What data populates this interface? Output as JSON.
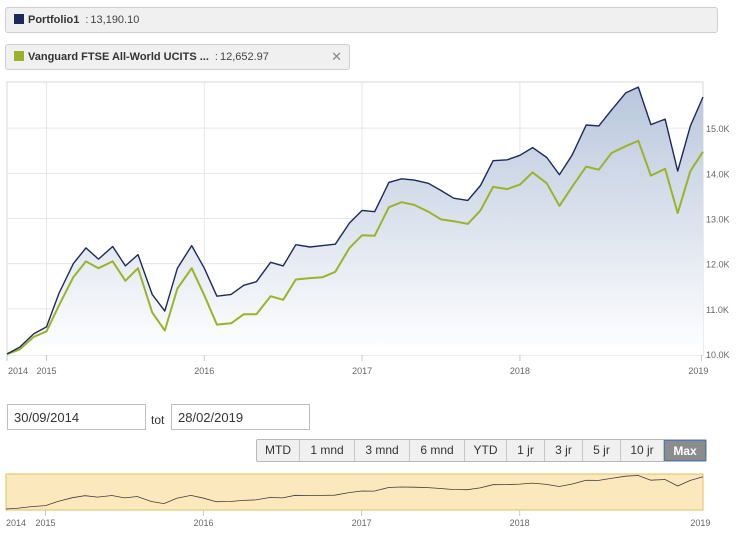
{
  "legend": {
    "series1_name": "Portfolio1",
    "series1_value": "13,190.10",
    "series1_color": "#1b2a5c",
    "series2_name": "Vanguard FTSE All-World UCITS ...",
    "series2_value": "12,652.97",
    "series2_color": "#9bb32a",
    "close_icon": "close-icon",
    "value_separator": ":"
  },
  "range": {
    "from": "30/09/2014",
    "connector": "tot",
    "to": "28/02/2019"
  },
  "range_buttons": [
    {
      "label": "MTD",
      "active": false
    },
    {
      "label": "1 mnd",
      "active": false
    },
    {
      "label": "3 mnd",
      "active": false
    },
    {
      "label": "6 mnd",
      "active": false
    },
    {
      "label": "YTD",
      "active": false
    },
    {
      "label": "1 jr",
      "active": false
    },
    {
      "label": "3 jr",
      "active": false
    },
    {
      "label": "5 jr",
      "active": false
    },
    {
      "label": "10 jr",
      "active": false
    },
    {
      "label": "Max",
      "active": true
    }
  ],
  "navigator": {
    "x_ticks": [
      {
        "label": "2014",
        "x": 2014.75
      },
      {
        "label": "2015",
        "x": 2015.0
      },
      {
        "label": "2016",
        "x": 2016.0
      },
      {
        "label": "2017",
        "x": 2017.0
      },
      {
        "label": "2018",
        "x": 2018.0
      },
      {
        "label": "2019",
        "x": 2019.15
      }
    ]
  },
  "colors": {
    "area_top": "#b9c6dc",
    "area_bottom": "#ffffff",
    "navigator_fill": "#fbe9bd",
    "navigator_border": "#e3bf62",
    "grid": "#e6e6e6"
  },
  "chart_data": {
    "type": "line",
    "title": "",
    "xlabel": "",
    "ylabel": "",
    "x_range": [
      2014.75,
      2019.16
    ],
    "ylim": [
      10000,
      16000
    ],
    "grid": true,
    "y_ticks": [
      {
        "label": "10.0K",
        "value": 10000
      },
      {
        "label": "11.0K",
        "value": 11000
      },
      {
        "label": "12.0K",
        "value": 12000
      },
      {
        "label": "13.0K",
        "value": 13000
      },
      {
        "label": "14.0K",
        "value": 14000
      },
      {
        "label": "15.0K",
        "value": 15000
      }
    ],
    "x_ticks": [
      {
        "label": "2014",
        "x": 2014.75
      },
      {
        "label": "2015",
        "x": 2015.0
      },
      {
        "label": "2016",
        "x": 2016.0
      },
      {
        "label": "2017",
        "x": 2017.0
      },
      {
        "label": "2018",
        "x": 2018.0
      },
      {
        "label": "2019",
        "x": 2019.15
      }
    ],
    "x": [
      2014.75,
      2014.83,
      2014.92,
      2015.0,
      2015.08,
      2015.17,
      2015.25,
      2015.33,
      2015.42,
      2015.5,
      2015.58,
      2015.67,
      2015.75,
      2015.83,
      2015.92,
      2016.0,
      2016.08,
      2016.17,
      2016.25,
      2016.33,
      2016.42,
      2016.5,
      2016.58,
      2016.67,
      2016.75,
      2016.83,
      2016.92,
      2017.0,
      2017.08,
      2017.17,
      2017.25,
      2017.33,
      2017.42,
      2017.5,
      2017.58,
      2017.67,
      2017.75,
      2017.83,
      2017.92,
      2018.0,
      2018.08,
      2018.17,
      2018.25,
      2018.33,
      2018.42,
      2018.5,
      2018.58,
      2018.67,
      2018.75,
      2018.83,
      2018.92,
      2019.0,
      2019.08,
      2019.16
    ],
    "series": [
      {
        "name": "Portfolio1",
        "color": "#1b2a5c",
        "values": [
          10000,
          10150,
          10450,
          10600,
          11350,
          12000,
          12350,
          12100,
          12380,
          11950,
          12200,
          11320,
          10950,
          11900,
          12400,
          11900,
          11280,
          11320,
          11520,
          11600,
          12030,
          11950,
          12420,
          12370,
          12400,
          12430,
          12900,
          13180,
          13150,
          13800,
          13880,
          13850,
          13780,
          13620,
          13450,
          13400,
          13730,
          14280,
          14300,
          14400,
          14570,
          14350,
          13970,
          14400,
          15070,
          15050,
          15400,
          15780,
          15910,
          15080,
          15200,
          14050,
          15050,
          15690
        ]
      },
      {
        "name": "Vanguard FTSE All-World UCITS ...",
        "color": "#9bb32a",
        "values": [
          10000,
          10100,
          10380,
          10500,
          11080,
          11700,
          12050,
          11900,
          12050,
          11620,
          11900,
          10920,
          10520,
          11450,
          11900,
          11300,
          10650,
          10680,
          10880,
          10880,
          11280,
          11200,
          11650,
          11680,
          11700,
          11820,
          12350,
          12630,
          12620,
          13250,
          13360,
          13300,
          13150,
          12980,
          12940,
          12880,
          13180,
          13700,
          13650,
          13750,
          14020,
          13780,
          13280,
          13700,
          14150,
          14080,
          14450,
          14600,
          14720,
          13950,
          14100,
          13120,
          14050,
          14480
        ]
      }
    ]
  }
}
